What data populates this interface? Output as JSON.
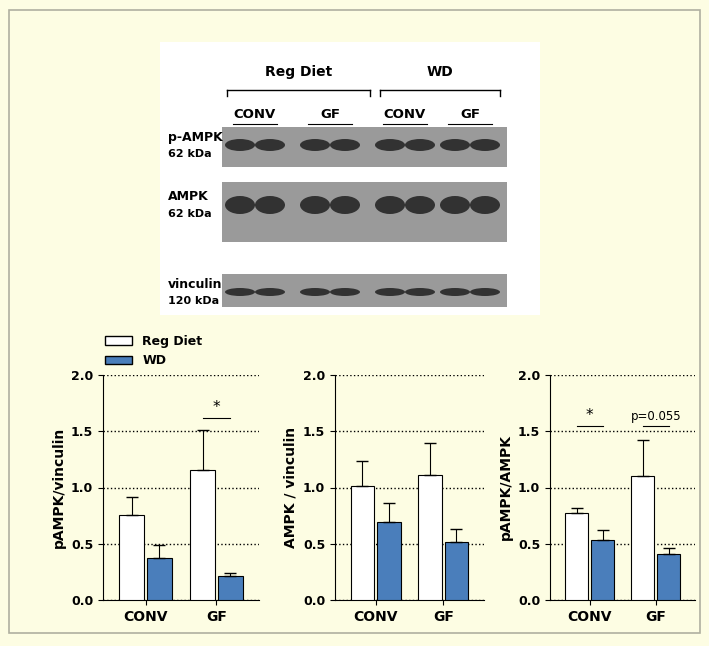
{
  "blot": {
    "groups": [
      {
        "label": "Reg Diet",
        "subgroups": [
          "CONV",
          "GF"
        ]
      },
      {
        "label": "WD",
        "subgroups": [
          "CONV",
          "GF"
        ]
      }
    ],
    "rows": [
      {
        "label": "p-AMPK",
        "size": "62 kDa"
      },
      {
        "label": "AMPK",
        "size": "62 kDa"
      },
      {
        "label": "vinculin",
        "size": "120 kDa"
      }
    ]
  },
  "chart_data": [
    {
      "type": "bar",
      "y_label": "pAMPK/vinculin",
      "categories": [
        "CONV",
        "GF"
      ],
      "series": [
        {
          "name": "Reg Diet",
          "color": "#ffffff",
          "values": [
            0.76,
            1.16
          ],
          "errors": [
            0.16,
            0.35
          ]
        },
        {
          "name": "WD",
          "color": "#4a7ebb",
          "values": [
            0.37,
            0.21
          ],
          "errors": [
            0.12,
            0.03
          ]
        }
      ],
      "ylim": [
        0,
        2
      ],
      "yticks": [
        {
          "value": 0,
          "label": "0.0"
        },
        {
          "value": 0.5,
          "label": "0.5"
        },
        {
          "value": 1,
          "label": "1.0"
        },
        {
          "value": 1.5,
          "label": "1.5"
        },
        {
          "value": 2,
          "label": "2.0"
        }
      ],
      "grid": true,
      "legend": "upper left",
      "annotations": [
        {
          "text": "*",
          "category": "GF",
          "y": 1.62
        }
      ]
    },
    {
      "type": "bar",
      "y_label": "AMPK / vinculin",
      "categories": [
        "CONV",
        "GF"
      ],
      "series": [
        {
          "name": "Reg Diet",
          "color": "#ffffff",
          "values": [
            1.01,
            1.11
          ],
          "errors": [
            0.23,
            0.29
          ]
        },
        {
          "name": "WD",
          "color": "#4a7ebb",
          "values": [
            0.69,
            0.52
          ],
          "errors": [
            0.17,
            0.11
          ]
        }
      ],
      "ylim": [
        0,
        2
      ],
      "yticks": [
        {
          "value": 0,
          "label": "0.0"
        },
        {
          "value": 0.5,
          "label": "0.5"
        },
        {
          "value": 1,
          "label": "1.0"
        },
        {
          "value": 1.5,
          "label": "1.5"
        },
        {
          "value": 2,
          "label": "2.0"
        }
      ],
      "grid": true,
      "annotations": []
    },
    {
      "type": "bar",
      "y_label": "pAMPK/AMPK",
      "categories": [
        "CONV",
        "GF"
      ],
      "series": [
        {
          "name": "Reg Diet",
          "color": "#ffffff",
          "values": [
            0.77,
            1.1
          ],
          "errors": [
            0.05,
            0.32
          ]
        },
        {
          "name": "WD",
          "color": "#4a7ebb",
          "values": [
            0.53,
            0.41
          ],
          "errors": [
            0.09,
            0.05
          ]
        }
      ],
      "ylim": [
        0,
        2
      ],
      "yticks": [
        {
          "value": 0,
          "label": "0.0"
        },
        {
          "value": 0.5,
          "label": "0.5"
        },
        {
          "value": 1,
          "label": "1.0"
        },
        {
          "value": 1.5,
          "label": "1.5"
        },
        {
          "value": 2,
          "label": "2.0"
        }
      ],
      "grid": true,
      "annotations": [
        {
          "text": "*",
          "category": "CONV",
          "y": 1.55
        },
        {
          "text": "p=0.055",
          "category": "GF",
          "y": 1.55
        }
      ]
    }
  ]
}
